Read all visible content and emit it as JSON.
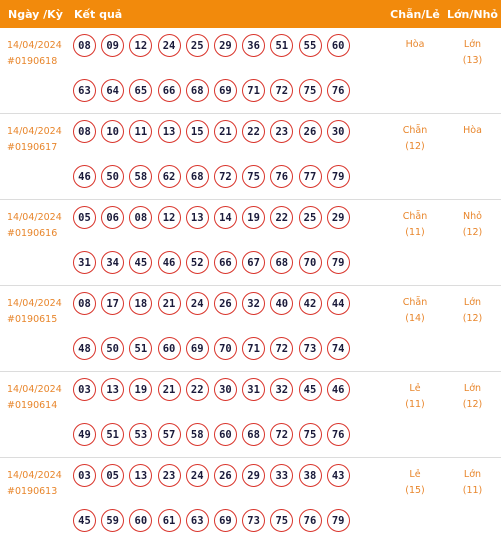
{
  "header": {
    "date": "Ngày /Kỳ",
    "result": "Kết quả",
    "chan_le": "Chẵn/Lẻ",
    "lon_nho": "Lớn/Nhỏ"
  },
  "rows": [
    {
      "date": "14/04/2024",
      "draw": "#0190618",
      "balls": [
        "08",
        "09",
        "12",
        "24",
        "25",
        "29",
        "36",
        "51",
        "55",
        "60",
        "63",
        "64",
        "65",
        "66",
        "68",
        "69",
        "71",
        "72",
        "75",
        "76"
      ],
      "chan_le": "Hòa",
      "chan_le_count": "",
      "lon_nho": "Lớn",
      "lon_nho_count": "(13)"
    },
    {
      "date": "14/04/2024",
      "draw": "#0190617",
      "balls": [
        "08",
        "10",
        "11",
        "13",
        "15",
        "21",
        "22",
        "23",
        "26",
        "30",
        "46",
        "50",
        "58",
        "62",
        "68",
        "72",
        "75",
        "76",
        "77",
        "79"
      ],
      "chan_le": "Chẵn",
      "chan_le_count": "(12)",
      "lon_nho": "Hòa",
      "lon_nho_count": ""
    },
    {
      "date": "14/04/2024",
      "draw": "#0190616",
      "balls": [
        "05",
        "06",
        "08",
        "12",
        "13",
        "14",
        "19",
        "22",
        "25",
        "29",
        "31",
        "34",
        "45",
        "46",
        "52",
        "66",
        "67",
        "68",
        "70",
        "79"
      ],
      "chan_le": "Chẵn",
      "chan_le_count": "(11)",
      "lon_nho": "Nhỏ",
      "lon_nho_count": "(12)"
    },
    {
      "date": "14/04/2024",
      "draw": "#0190615",
      "balls": [
        "08",
        "17",
        "18",
        "21",
        "24",
        "26",
        "32",
        "40",
        "42",
        "44",
        "48",
        "50",
        "51",
        "60",
        "69",
        "70",
        "71",
        "72",
        "73",
        "74"
      ],
      "chan_le": "Chẵn",
      "chan_le_count": "(14)",
      "lon_nho": "Lớn",
      "lon_nho_count": "(12)"
    },
    {
      "date": "14/04/2024",
      "draw": "#0190614",
      "balls": [
        "03",
        "13",
        "19",
        "21",
        "22",
        "30",
        "31",
        "32",
        "45",
        "46",
        "49",
        "51",
        "53",
        "57",
        "58",
        "60",
        "68",
        "72",
        "75",
        "76"
      ],
      "chan_le": "Lẻ",
      "chan_le_count": "(11)",
      "lon_nho": "Lớn",
      "lon_nho_count": "(12)"
    },
    {
      "date": "14/04/2024",
      "draw": "#0190613",
      "balls": [
        "03",
        "05",
        "13",
        "23",
        "24",
        "26",
        "29",
        "33",
        "38",
        "43",
        "45",
        "59",
        "60",
        "61",
        "63",
        "69",
        "73",
        "75",
        "76",
        "79"
      ],
      "chan_le": "Lẻ",
      "chan_le_count": "(15)",
      "lon_nho": "Lớn",
      "lon_nho_count": "(11)"
    }
  ]
}
